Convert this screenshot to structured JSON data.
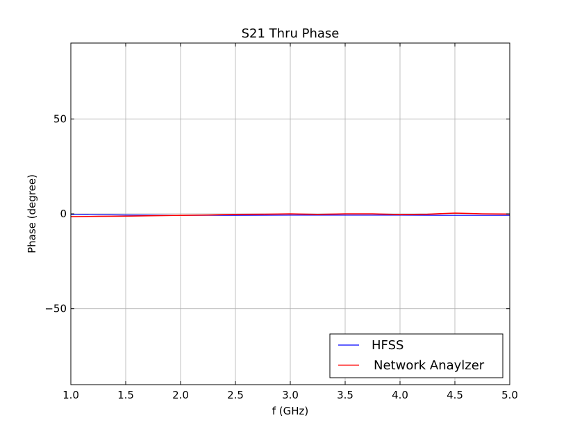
{
  "chart_data": {
    "type": "line",
    "title": "S21 Thru Phase",
    "xlabel": "f (GHz)",
    "ylabel": "Phase (degree)",
    "xlim": [
      1.0,
      5.0
    ],
    "ylim": [
      -90,
      90
    ],
    "xticks": [
      1.0,
      1.5,
      2.0,
      2.5,
      3.0,
      3.5,
      4.0,
      4.5,
      5.0
    ],
    "xtick_labels": [
      "1.0",
      "1.5",
      "2.0",
      "2.5",
      "3.0",
      "3.5",
      "4.0",
      "4.5",
      "5.0"
    ],
    "yticks": [
      -50,
      0,
      50
    ],
    "ytick_labels": [
      "−50",
      "0",
      "50"
    ],
    "grid": true,
    "legend_position": "lower-right",
    "series": [
      {
        "name": "HFSS",
        "color": "#0000ff",
        "x": [
          1.0,
          1.5,
          2.0,
          2.5,
          3.0,
          3.5,
          4.0,
          4.5,
          5.0
        ],
        "y": [
          -0.3,
          -0.6,
          -0.8,
          -0.8,
          -0.7,
          -0.7,
          -0.7,
          -0.8,
          -0.8
        ]
      },
      {
        "name": "Network Anaylzer",
        "color": "#ff0000",
        "x": [
          1.0,
          1.25,
          1.5,
          1.75,
          2.0,
          2.25,
          2.5,
          2.75,
          3.0,
          3.25,
          3.5,
          3.75,
          4.0,
          4.25,
          4.5,
          4.75,
          5.0
        ],
        "y": [
          -1.5,
          -1.3,
          -1.2,
          -1.0,
          -0.8,
          -0.6,
          -0.3,
          -0.2,
          0.0,
          -0.3,
          0.0,
          0.0,
          -0.4,
          -0.2,
          0.4,
          0.0,
          -0.1
        ]
      }
    ]
  }
}
